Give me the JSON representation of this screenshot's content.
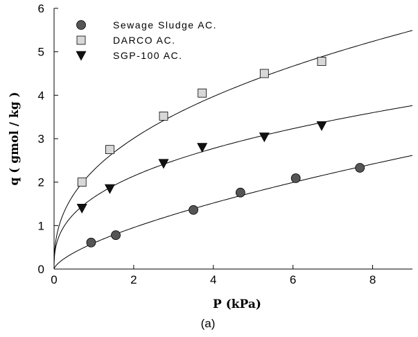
{
  "chart_data": {
    "type": "scatter",
    "xlabel": "P (kPa)",
    "ylabel": "q ( gmol / kg )",
    "caption": "(a)",
    "xlim": [
      0,
      9
    ],
    "ylim": [
      0,
      6
    ],
    "xticks": [
      "0",
      "2",
      "4",
      "6",
      "8"
    ],
    "yticks": [
      "0",
      "1",
      "2",
      "3",
      "4",
      "5",
      "6"
    ],
    "legend_position": "top-left",
    "series": [
      {
        "name": "Sewage Sludge AC.",
        "marker": "circle",
        "color": "#555555",
        "points": [
          [
            0.93,
            0.61
          ],
          [
            1.55,
            0.78
          ],
          [
            3.5,
            1.36
          ],
          [
            4.68,
            1.76
          ],
          [
            6.07,
            2.09
          ],
          [
            7.68,
            2.33
          ]
        ],
        "fit": {
          "a": 0.6,
          "n": 0.67
        }
      },
      {
        "name": "DARCO AC.",
        "marker": "square",
        "color": "#d8d8d8",
        "points": [
          [
            0.7,
            2.0
          ],
          [
            1.4,
            2.75
          ],
          [
            2.75,
            3.52
          ],
          [
            3.72,
            4.05
          ],
          [
            5.28,
            4.5
          ],
          [
            6.72,
            4.78
          ]
        ],
        "fit": {
          "a": 2.28,
          "n": 0.4
        }
      },
      {
        "name": "SGP-100 AC.",
        "marker": "triangle-down",
        "color": "#111111",
        "points": [
          [
            0.7,
            1.4
          ],
          [
            1.4,
            1.85
          ],
          [
            2.75,
            2.43
          ],
          [
            3.72,
            2.8
          ],
          [
            5.28,
            3.04
          ],
          [
            6.72,
            3.3
          ]
        ],
        "fit": {
          "a": 1.65,
          "n": 0.375
        }
      }
    ]
  }
}
